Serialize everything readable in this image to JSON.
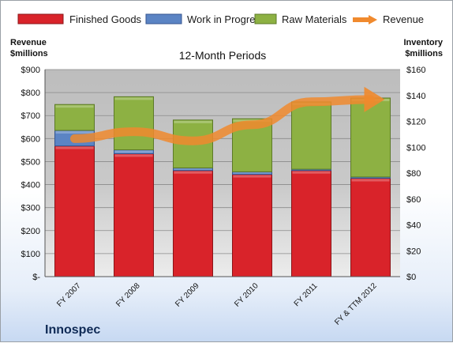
{
  "company": "Innospec",
  "chart_data": {
    "type": "bar",
    "subtitle": "12-Month Periods",
    "categories": [
      "FY 2007",
      "FY 2008",
      "FY 2009",
      "FY 2010",
      "FY 2011",
      "FY & TTM 2012"
    ],
    "series": [
      {
        "name": "Finished Goods",
        "axis": "right",
        "color": "#d9232a",
        "values": [
          101,
          95,
          82,
          79,
          82,
          76
        ]
      },
      {
        "name": "Work in Progress",
        "axis": "right",
        "color": "#5b84c4",
        "values": [
          12,
          3,
          2,
          2,
          1,
          1
        ]
      },
      {
        "name": "Raw Materials",
        "axis": "right",
        "color": "#8db143",
        "values": [
          20,
          41,
          37,
          41,
          52,
          61
        ]
      },
      {
        "name": "Revenue",
        "axis": "left",
        "type": "line",
        "color": "#f08a2e",
        "values": [
          600,
          630,
          590,
          660,
          760,
          770
        ]
      }
    ],
    "left_axis": {
      "label_line1": "Revenue",
      "label_line2": "$millions",
      "ylim": [
        0,
        900
      ],
      "ticks": [
        "$-",
        "$100",
        "$200",
        "$300",
        "$400",
        "$500",
        "$600",
        "$700",
        "$800",
        "$900"
      ]
    },
    "right_axis": {
      "label_line1": "Inventory",
      "label_line2": "$millions",
      "ylim": [
        0,
        160
      ],
      "ticks": [
        "$0",
        "$20",
        "$40",
        "$60",
        "$80",
        "$100",
        "$120",
        "$140",
        "$160"
      ]
    },
    "legend_position": "top",
    "grid": true
  }
}
